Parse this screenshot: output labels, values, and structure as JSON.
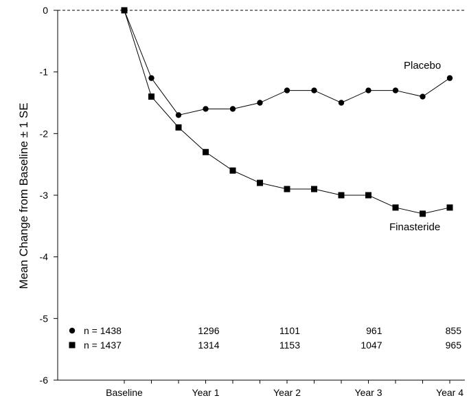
{
  "chart_data": {
    "type": "line",
    "title": "",
    "xlabel": "",
    "ylabel": "Mean Change from Baseline  ± 1 SE",
    "ylim": [
      -6,
      0
    ],
    "y_ticks": [
      "0",
      "-1",
      "-2",
      "-3",
      "-4",
      "-5",
      "-6"
    ],
    "y_tick_values": [
      0,
      -1,
      -2,
      -3,
      -4,
      -5,
      -6
    ],
    "x_tick_labels": [
      "Baseline",
      "Year 1",
      "Year 2",
      "Year 3",
      "Year 4"
    ],
    "x_tick_label_positions": [
      0,
      3,
      6,
      9,
      12
    ],
    "x": [
      0,
      1,
      2,
      3,
      4,
      5,
      6,
      7,
      8,
      9,
      10,
      11,
      12
    ],
    "reference_line": {
      "y": 0,
      "style": "dashed"
    },
    "grid": false,
    "series": [
      {
        "name": "Placebo",
        "marker": "circle",
        "values": [
          0,
          -1.1,
          -1.7,
          -1.6,
          -1.6,
          -1.5,
          -1.3,
          -1.3,
          -1.5,
          -1.3,
          -1.3,
          -1.4,
          -1.1
        ]
      },
      {
        "name": "Finasteride",
        "marker": "square",
        "values": [
          0,
          -1.4,
          -1.9,
          -2.3,
          -2.6,
          -2.8,
          -2.9,
          -2.9,
          -3.0,
          -3.0,
          -3.2,
          -3.3,
          -3.2
        ]
      }
    ],
    "n_counts": [
      {
        "marker": "circle",
        "first": "n = 1438",
        "values": [
          "1296",
          "1101",
          "961",
          "855"
        ]
      },
      {
        "marker": "square",
        "first": "n = 1437",
        "values": [
          "1314",
          "1153",
          "1047",
          "965"
        ]
      }
    ]
  }
}
